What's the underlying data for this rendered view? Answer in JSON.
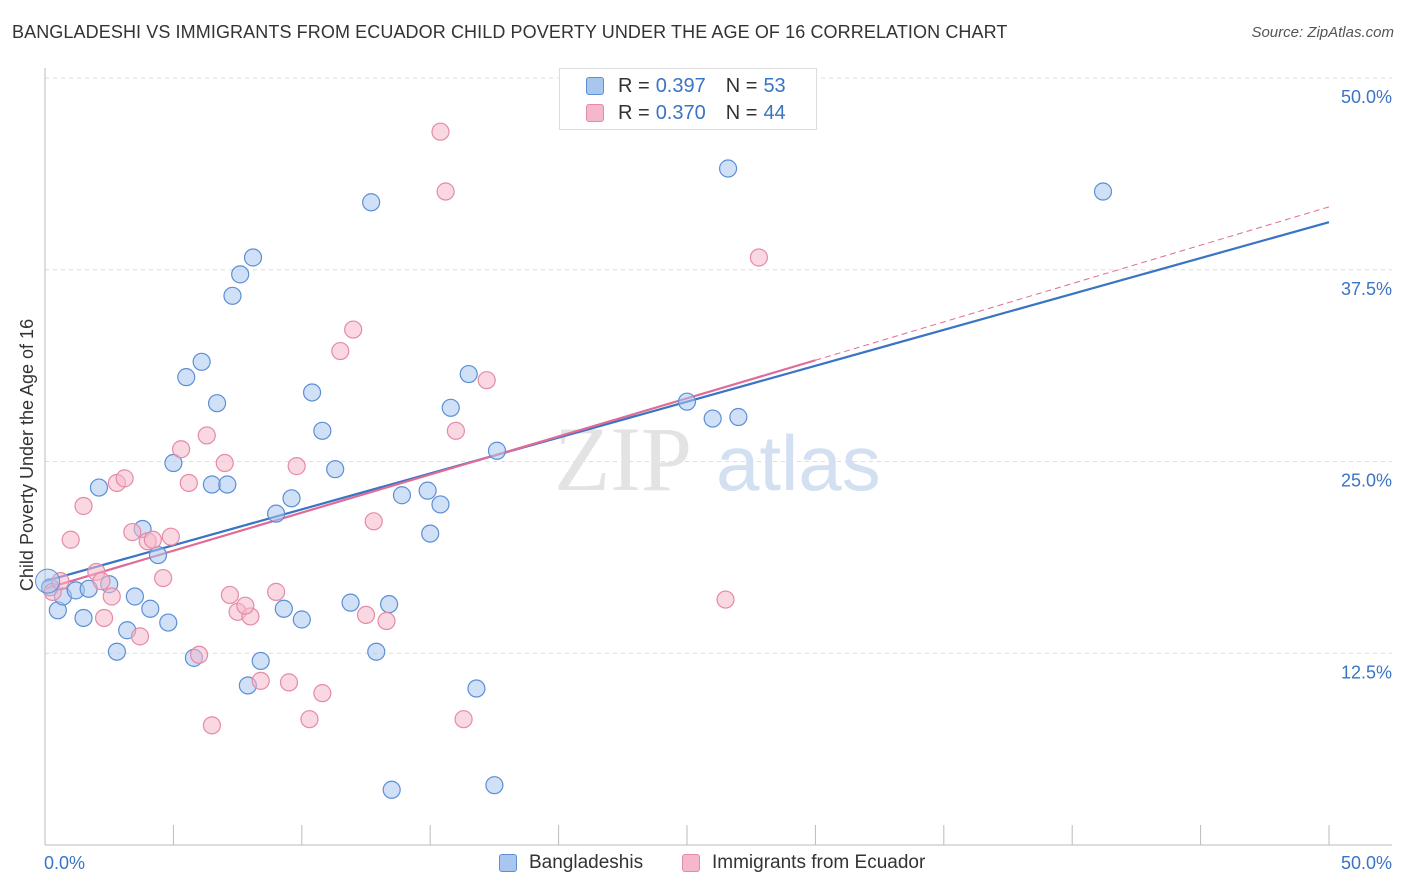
{
  "title": "BANGLADESHI VS IMMIGRANTS FROM ECUADOR CHILD POVERTY UNDER THE AGE OF 16 CORRELATION CHART",
  "source": "Source: ZipAtlas.com",
  "watermark": {
    "zip": "ZIP",
    "atlas": "atlas"
  },
  "colors": {
    "blue_fill": "#a9c6ee",
    "blue_stroke": "#5b8fd6",
    "blue_line": "#3a74c4",
    "pink_fill": "#f5b8cb",
    "pink_stroke": "#e58aa8",
    "pink_line": "#e06b97",
    "axis_label": "#3a74c4",
    "grid": "#dddddd"
  },
  "legend": {
    "series": [
      {
        "r_label": "R = ",
        "r_value": "0.397",
        "n_label": "N = ",
        "n_value": "53"
      },
      {
        "r_label": "R = ",
        "r_value": "0.370",
        "n_label": "N = ",
        "n_value": "44"
      }
    ]
  },
  "chart_data": {
    "type": "scatter",
    "title": "BANGLADESHI VS IMMIGRANTS FROM ECUADOR CHILD POVERTY UNDER THE AGE OF 16 CORRELATION CHART",
    "xlabel": "",
    "ylabel": "Child Poverty Under the Age of 16",
    "xlim": [
      0,
      50
    ],
    "ylim": [
      0,
      50
    ],
    "x_tick_labels": [
      "0.0%",
      "50.0%"
    ],
    "y_ticks": [
      12.5,
      25.0,
      37.5,
      50.0
    ],
    "y_tick_labels": [
      "12.5%",
      "25.0%",
      "37.5%",
      "50.0%"
    ],
    "grid": "horizontal dashed",
    "legend_position": "top-center",
    "series": [
      {
        "name": "Bangladeshis",
        "color": "#a9c6ee",
        "trend": {
          "x0": 0,
          "y0": 17.2,
          "x1": 50,
          "y1": 40.6
        },
        "points": [
          [
            0.2,
            16.8
          ],
          [
            0.5,
            15.3
          ],
          [
            0.7,
            16.2
          ],
          [
            1.2,
            16.6
          ],
          [
            1.5,
            14.8
          ],
          [
            1.7,
            16.7
          ],
          [
            2.1,
            23.3
          ],
          [
            2.5,
            17.0
          ],
          [
            2.8,
            12.6
          ],
          [
            3.2,
            14.0
          ],
          [
            3.5,
            16.2
          ],
          [
            3.8,
            20.6
          ],
          [
            4.1,
            15.4
          ],
          [
            4.4,
            18.9
          ],
          [
            4.8,
            14.5
          ],
          [
            5.0,
            24.9
          ],
          [
            5.5,
            30.5
          ],
          [
            5.8,
            12.2
          ],
          [
            6.1,
            31.5
          ],
          [
            6.5,
            23.5
          ],
          [
            6.7,
            28.8
          ],
          [
            7.1,
            23.5
          ],
          [
            7.3,
            35.8
          ],
          [
            7.6,
            37.2
          ],
          [
            7.9,
            10.4
          ],
          [
            8.1,
            38.3
          ],
          [
            8.4,
            12.0
          ],
          [
            9.0,
            21.6
          ],
          [
            9.3,
            15.4
          ],
          [
            9.6,
            22.6
          ],
          [
            10.0,
            14.7
          ],
          [
            10.4,
            29.5
          ],
          [
            10.8,
            27.0
          ],
          [
            11.3,
            24.5
          ],
          [
            11.9,
            15.8
          ],
          [
            12.7,
            41.9
          ],
          [
            12.9,
            12.6
          ],
          [
            13.4,
            15.7
          ],
          [
            13.5,
            3.6
          ],
          [
            13.9,
            22.8
          ],
          [
            14.9,
            23.1
          ],
          [
            15.0,
            20.3
          ],
          [
            15.4,
            22.2
          ],
          [
            15.8,
            28.5
          ],
          [
            16.5,
            30.7
          ],
          [
            16.8,
            10.2
          ],
          [
            17.5,
            3.9
          ],
          [
            17.6,
            25.7
          ],
          [
            25.0,
            28.9
          ],
          [
            26.0,
            27.8
          ],
          [
            26.6,
            44.1
          ],
          [
            41.2,
            42.6
          ],
          [
            27.0,
            27.9
          ]
        ]
      },
      {
        "name": "Immigrants from Ecuador",
        "color": "#f5b8cb",
        "trend": {
          "x0": 0,
          "y0": 16.7,
          "x1": 30,
          "y1": 31.6
        },
        "trend_dashed_ext": {
          "x0": 30,
          "y0": 31.6,
          "x1": 50,
          "y1": 41.6
        },
        "points": [
          [
            0.3,
            16.5
          ],
          [
            0.6,
            17.2
          ],
          [
            1.0,
            19.9
          ],
          [
            1.5,
            22.1
          ],
          [
            2.0,
            17.8
          ],
          [
            2.3,
            14.8
          ],
          [
            2.6,
            16.2
          ],
          [
            2.8,
            23.6
          ],
          [
            3.1,
            23.9
          ],
          [
            3.4,
            20.4
          ],
          [
            3.7,
            13.6
          ],
          [
            4.0,
            19.8
          ],
          [
            4.2,
            19.9
          ],
          [
            4.6,
            17.4
          ],
          [
            4.9,
            20.1
          ],
          [
            5.3,
            25.8
          ],
          [
            5.6,
            23.6
          ],
          [
            6.0,
            12.4
          ],
          [
            6.3,
            26.7
          ],
          [
            6.5,
            7.8
          ],
          [
            7.0,
            24.9
          ],
          [
            7.2,
            16.3
          ],
          [
            7.5,
            15.2
          ],
          [
            8.0,
            14.9
          ],
          [
            8.4,
            10.7
          ],
          [
            9.0,
            16.5
          ],
          [
            9.5,
            10.6
          ],
          [
            9.8,
            24.7
          ],
          [
            10.3,
            8.2
          ],
          [
            10.8,
            9.9
          ],
          [
            11.5,
            32.2
          ],
          [
            12.0,
            33.6
          ],
          [
            12.8,
            21.1
          ],
          [
            13.3,
            14.6
          ],
          [
            15.4,
            46.5
          ],
          [
            15.6,
            42.6
          ],
          [
            16.0,
            27.0
          ],
          [
            16.3,
            8.2
          ],
          [
            17.2,
            30.3
          ],
          [
            26.5,
            16.0
          ],
          [
            27.8,
            38.3
          ],
          [
            2.2,
            17.2
          ],
          [
            12.5,
            15.0
          ],
          [
            7.8,
            15.6
          ]
        ]
      }
    ]
  }
}
